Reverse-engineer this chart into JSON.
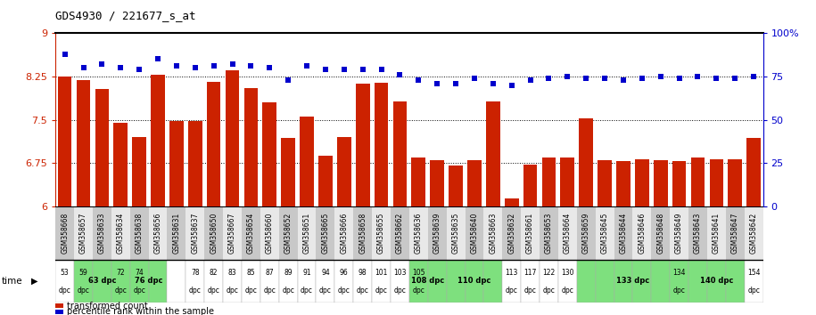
{
  "title": "GDS4930 / 221677_s_at",
  "gsm_labels": [
    "GSM358668",
    "GSM358657",
    "GSM358633",
    "GSM358634",
    "GSM358638",
    "GSM358656",
    "GSM358631",
    "GSM358637",
    "GSM358650",
    "GSM358667",
    "GSM358654",
    "GSM358660",
    "GSM358652",
    "GSM358651",
    "GSM358665",
    "GSM358666",
    "GSM358658",
    "GSM358655",
    "GSM358662",
    "GSM358636",
    "GSM358639",
    "GSM358635",
    "GSM358640",
    "GSM358663",
    "GSM358632",
    "GSM358661",
    "GSM358653",
    "GSM358664",
    "GSM358659",
    "GSM358645",
    "GSM358644",
    "GSM358646",
    "GSM358648",
    "GSM358649",
    "GSM358643",
    "GSM358641",
    "GSM358647",
    "GSM358642"
  ],
  "bar_values": [
    8.25,
    8.18,
    8.03,
    7.45,
    7.2,
    8.28,
    7.48,
    7.47,
    8.15,
    8.35,
    8.05,
    7.8,
    7.18,
    7.55,
    6.88,
    7.2,
    8.13,
    8.14,
    7.82,
    6.84,
    6.8,
    6.7,
    6.8,
    7.82,
    6.13,
    6.72,
    6.84,
    6.84,
    7.52,
    6.8,
    6.78,
    6.82,
    6.8,
    6.78,
    6.85,
    6.82,
    6.82,
    7.18
  ],
  "percentile_values": [
    88,
    80,
    82,
    80,
    79,
    85,
    81,
    80,
    81,
    82,
    81,
    80,
    73,
    81,
    79,
    79,
    79,
    79,
    76,
    73,
    71,
    71,
    74,
    71,
    70,
    73,
    74,
    75,
    74,
    74,
    73,
    74,
    75,
    74,
    75,
    74,
    74,
    75
  ],
  "ylim_left": [
    6.0,
    9.0
  ],
  "ylim_right": [
    0,
    100
  ],
  "yticks_left": [
    6.0,
    6.75,
    7.5,
    8.25,
    9.0
  ],
  "ytick_labels_left": [
    "6",
    "6.75",
    "7.5",
    "8.25",
    "9"
  ],
  "yticks_right": [
    0,
    25,
    50,
    75,
    100
  ],
  "ytick_labels_right": [
    "0",
    "25",
    "50",
    "75",
    "100%"
  ],
  "bar_color": "#CC2200",
  "dot_color": "#0000CC",
  "gsm_bg_even": "#C8C8C8",
  "gsm_bg_odd": "#E8E8E8",
  "green_bg": "#7EE07E",
  "white_bg": "#FFFFFF",
  "groups": [
    {
      "text": "63 dpc",
      "start": 1,
      "end": 4
    },
    {
      "text": "76 dpc",
      "start": 4,
      "end": 6
    },
    {
      "text": "108 dpc",
      "start": 19,
      "end": 21
    },
    {
      "text": "110 dpc",
      "start": 21,
      "end": 24
    },
    {
      "text": "133 dpc",
      "start": 28,
      "end": 34
    },
    {
      "text": "140 dpc",
      "start": 34,
      "end": 37
    }
  ],
  "time_individual": [
    [
      0,
      "53"
    ],
    [
      1,
      "59"
    ],
    [
      3,
      "72"
    ],
    [
      4,
      "74"
    ],
    [
      7,
      "78"
    ],
    [
      8,
      "82"
    ],
    [
      9,
      "83"
    ],
    [
      10,
      "85"
    ],
    [
      11,
      "87"
    ],
    [
      12,
      "89"
    ],
    [
      13,
      "91"
    ],
    [
      14,
      "94"
    ],
    [
      15,
      "96"
    ],
    [
      16,
      "98"
    ],
    [
      17,
      "101"
    ],
    [
      18,
      "103"
    ],
    [
      19,
      "105"
    ],
    [
      24,
      "113"
    ],
    [
      25,
      "117"
    ],
    [
      26,
      "122"
    ],
    [
      27,
      "130"
    ],
    [
      33,
      "134"
    ],
    [
      37,
      "154"
    ]
  ]
}
